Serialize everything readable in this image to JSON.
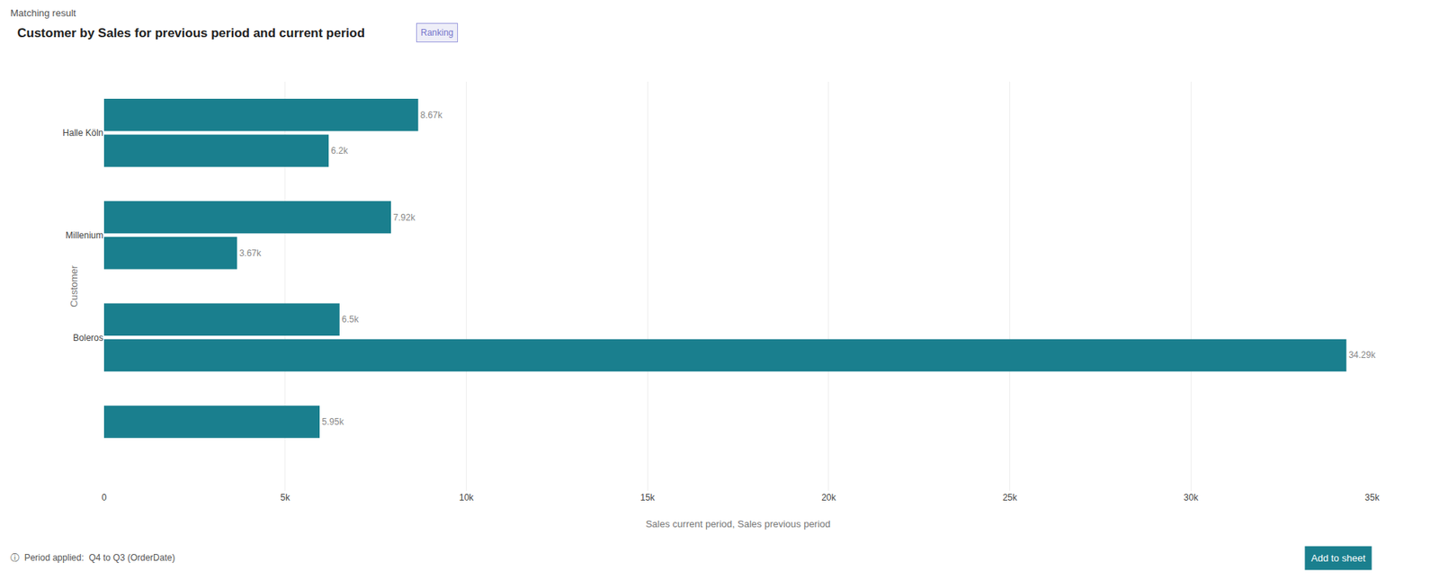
{
  "chart_data": {
    "type": "bar",
    "orientation": "horizontal",
    "title": "Customer by Sales for previous period and current period",
    "xlabel": "Sales current period, Sales previous period",
    "ylabel": "Customer",
    "categories": [
      "Halle Köln",
      "Millenium",
      "Boleros",
      null
    ],
    "series": [
      {
        "color": "#1a7f8e",
        "values": [
          8670,
          7920,
          6500,
          5950
        ],
        "value_labels": [
          "8.67k",
          "7.92k",
          "6.5k",
          "5.95k"
        ]
      },
      {
        "color": "#1a7f8e",
        "values": [
          6200,
          3670,
          34290,
          null
        ],
        "value_labels": [
          "6.2k",
          "3.67k",
          "34.29k",
          null
        ]
      }
    ],
    "xlim": [
      0,
      35000
    ],
    "xticks": [
      0,
      {
        "value": 5000,
        "label": "5k"
      },
      {
        "value": 10000,
        "label": "10k"
      },
      {
        "value": 15000,
        "label": "15k"
      },
      {
        "value": 20000,
        "label": "20k"
      },
      {
        "value": 25000,
        "label": "25k"
      },
      {
        "value": 30000,
        "label": "30k"
      },
      {
        "value": 35000,
        "label": "35k"
      }
    ],
    "grid": true,
    "data_labels": true,
    "annotations": [
      "Matching result",
      "Ranking",
      "ⓘ  Period applied:  Q4 to Q3 (OrderDate)",
      "Add to sheet"
    ]
  }
}
